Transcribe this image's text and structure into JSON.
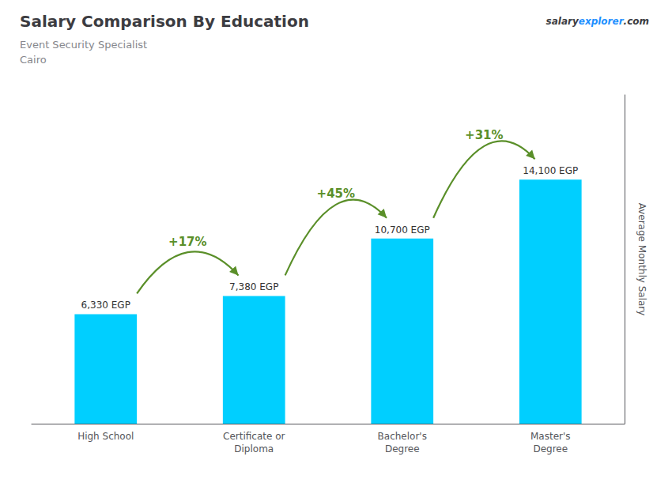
{
  "chart_data": {
    "type": "bar",
    "title": "Salary Comparison By Education",
    "subtitle": [
      "Event Security Specialist",
      "Cairo"
    ],
    "watermark": [
      "salary",
      "explorer",
      ".com"
    ],
    "ylabel": "Average Monthly Salary",
    "categories": [
      "High School",
      "Certificate or\nDiploma",
      "Bachelor's\nDegree",
      "Master's\nDegree"
    ],
    "values": [
      6330,
      7380,
      10700,
      14100
    ],
    "value_labels": [
      "6,330 EGP",
      "7,380 EGP",
      "10,700 EGP",
      "14,100 EGP"
    ],
    "annotations": [
      "+17%",
      "+45%",
      "+31%"
    ],
    "color": "#00cfff",
    "ylim": [
      0,
      19000
    ],
    "tick_labels": "x",
    "grid": false,
    "data_labels": true
  }
}
